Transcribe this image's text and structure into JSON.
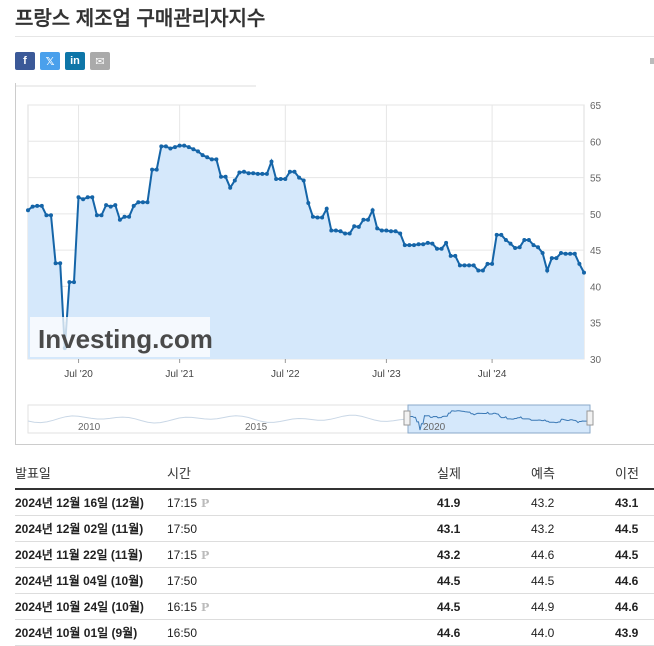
{
  "page": {
    "title": "프랑스 제조업 구매관리자지수"
  },
  "share": {
    "facebook": "f",
    "twitter": "𝕏",
    "linkedin": "in",
    "email": "✉"
  },
  "chart_data": {
    "type": "area",
    "title": "",
    "xlabel": "",
    "ylabel": "",
    "ylim": [
      30,
      65
    ],
    "yticks": [
      30,
      35,
      40,
      45,
      50,
      55,
      60,
      65
    ],
    "xticks": [
      "Jul '20",
      "Jul '21",
      "Jul '22",
      "Jul '23",
      "Jul '24"
    ],
    "grid": true,
    "color": "#1565a8",
    "fill": "#d5e8fb",
    "watermark": "Investing.com",
    "series": [
      {
        "values": [
          50.5,
          51.0,
          51.1,
          51.1,
          49.8,
          49.8,
          43.2,
          43.2,
          31.5,
          40.6,
          40.6,
          52.3,
          52.0,
          52.3,
          52.3,
          49.8,
          49.8,
          51.2,
          51.0,
          51.2,
          49.2,
          49.6,
          49.6,
          51.1,
          51.6,
          51.6,
          51.6,
          56.1,
          56.1,
          59.3,
          59.3,
          59.0,
          59.2,
          59.4,
          59.4,
          59.2,
          58.9,
          58.6,
          58.1,
          57.8,
          57.5,
          57.5,
          55.1,
          55.1,
          53.6,
          54.6,
          55.7,
          55.8,
          55.6,
          55.6,
          55.5,
          55.5,
          55.5,
          57.2,
          54.8,
          54.8,
          54.8,
          55.8,
          55.8,
          55.0,
          54.6,
          51.5,
          49.6,
          49.5,
          49.5,
          50.7,
          47.7,
          47.7,
          47.6,
          47.3,
          47.3,
          48.3,
          48.2,
          49.2,
          49.2,
          50.5,
          48.0,
          47.7,
          47.7,
          47.6,
          47.6,
          47.3,
          45.7,
          45.7,
          45.7,
          45.8,
          45.8,
          46.0,
          45.9,
          45.2,
          45.2,
          46.0,
          44.2,
          44.2,
          42.9,
          42.9,
          42.9,
          42.9,
          42.2,
          42.2,
          43.1,
          43.1,
          47.1,
          47.1,
          46.4,
          45.9,
          45.3,
          45.4,
          46.4,
          46.4,
          45.7,
          45.4,
          44.6,
          42.2,
          43.9,
          43.9,
          44.6,
          44.5,
          44.5,
          44.5,
          43.1,
          41.9
        ]
      }
    ],
    "navigator": {
      "labels": [
        "2010",
        "2015",
        "2020"
      ]
    }
  },
  "table": {
    "headers": {
      "date": "발표일",
      "time": "시간",
      "actual": "실제",
      "forecast": "예측",
      "previous": "이전"
    },
    "rows": [
      {
        "date": "2024년 12월 16일 (12월)",
        "time": "17:15",
        "prelim": "P",
        "actual": "41.9",
        "status": "up",
        "forecast": "43.2",
        "previous": "43.1"
      },
      {
        "date": "2024년 12월 02일 (11월)",
        "time": "17:50",
        "prelim": "",
        "actual": "43.1",
        "status": "up",
        "forecast": "43.2",
        "previous": "44.5"
      },
      {
        "date": "2024년 11월 22일 (11월)",
        "time": "17:15",
        "prelim": "P",
        "actual": "43.2",
        "status": "up",
        "forecast": "44.6",
        "previous": "44.5"
      },
      {
        "date": "2024년 11월 04일 (10월)",
        "time": "17:50",
        "prelim": "",
        "actual": "44.5",
        "status": "same",
        "forecast": "44.5",
        "previous": "44.6"
      },
      {
        "date": "2024년 10월 24일 (10월)",
        "time": "16:15",
        "prelim": "P",
        "actual": "44.5",
        "status": "up",
        "forecast": "44.9",
        "previous": "44.6"
      },
      {
        "date": "2024년 10월 01일 (9월)",
        "time": "16:50",
        "prelim": "",
        "actual": "44.6",
        "status": "down",
        "forecast": "44.0",
        "previous": "43.9"
      }
    ]
  }
}
